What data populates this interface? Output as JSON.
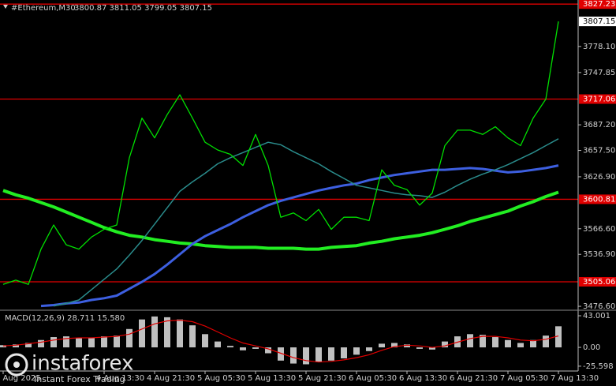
{
  "chart_data": [
    {
      "type": "line",
      "title": "#Ethereum,M30",
      "subtitle": "3800.87 3811.05 3799.05 3807.15",
      "categories": [
        "3 Aug 2025",
        null,
        null,
        null,
        null,
        null,
        null,
        null,
        "4 Aug 13:30",
        null,
        null,
        null,
        "4 Aug 21:30",
        null,
        null,
        null,
        "5 Aug 05:30",
        null,
        null,
        null,
        "5 Aug 13:30",
        null,
        null,
        null,
        "5 Aug 21:30",
        null,
        null,
        null,
        "6 Aug 05:30",
        null,
        null,
        null,
        "6 Aug 13:30",
        null,
        null,
        null,
        "6 Aug 21:30",
        null,
        null,
        null,
        "7 Aug 05:30",
        null,
        null,
        null,
        "7 Aug 13:30"
      ],
      "series": [
        {
          "color": "#22ee22",
          "values": [
            3611,
            3606,
            3602,
            3597,
            3592,
            3586,
            3580,
            3574,
            3568,
            3563,
            3559,
            3557,
            3554,
            3552,
            3550,
            3549,
            3547,
            3546,
            3545,
            3545,
            3545,
            3544,
            3544,
            3544,
            3543,
            3543,
            3545,
            3546,
            3547,
            3550,
            3552,
            3555,
            3557,
            3559,
            3562,
            3566,
            3570,
            3575,
            3579,
            3583,
            3587,
            3593,
            3598,
            3604,
            3609
          ]
        },
        {
          "color": "#3d5fe0",
          "values": [
            null,
            null,
            null,
            3477,
            3478,
            3480,
            3481,
            3484,
            3486,
            3489,
            3497,
            3505,
            3514,
            3525,
            3537,
            3549,
            3558,
            3565,
            3572,
            3580,
            3587,
            3594,
            3599,
            3603,
            3607,
            3611,
            3614,
            3617,
            3619,
            3623,
            3626,
            3629,
            3631,
            3633,
            3635,
            3635,
            3636,
            3637,
            3636,
            3634,
            3632,
            3633,
            3635,
            3637,
            3640
          ]
        },
        {
          "color": "#2a8c8c",
          "values": [
            null,
            null,
            null,
            null,
            3477,
            3480,
            3484,
            3496,
            3508,
            3520,
            3536,
            3553,
            3572,
            3591,
            3610,
            3621,
            3631,
            3642,
            3649,
            3655,
            3661,
            3667,
            3664,
            3656,
            3649,
            3642,
            3633,
            3625,
            3617,
            3614,
            3611,
            3608,
            3606,
            3605,
            3603,
            3609,
            3617,
            3624,
            3630,
            3635,
            3641,
            3648,
            3655,
            3663,
            3671
          ]
        },
        {
          "color": "#00e000",
          "values": [
            3502,
            3507,
            3502,
            3543,
            3571,
            3548,
            3543,
            3557,
            3566,
            3571,
            3649,
            3695,
            3672,
            3699,
            3722,
            3695,
            3667,
            3658,
            3653,
            3640,
            3676,
            3640,
            3580,
            3585,
            3576,
            3589,
            3566,
            3580,
            3580,
            3576,
            3635,
            3617,
            3612,
            3594,
            3608,
            3663,
            3681,
            3681,
            3676,
            3685,
            3672,
            3663,
            3695,
            3717,
            3807.15
          ]
        }
      ],
      "ylim": [
        3473,
        3832
      ],
      "yticks": [
        {
          "value": 3778.1,
          "label": "3778.10"
        },
        {
          "value": 3747.85,
          "label": "3747.85"
        },
        {
          "value": 3687.2,
          "label": "3687.20"
        },
        {
          "value": 3657.5,
          "label": "3657.50"
        },
        {
          "value": 3626.9,
          "label": "3626.90"
        },
        {
          "value": 3566.6,
          "label": "3566.60"
        },
        {
          "value": 3536.9,
          "label": "3536.90"
        },
        {
          "value": 3476.6,
          "label": "3476.60"
        }
      ],
      "levels": [
        3827.23,
        3717.06,
        3600.81,
        3505.06
      ],
      "level_color": "#e00000",
      "last_price": 3807.15,
      "watermark_title": "instaforex",
      "watermark_subtitle": "Instant Forex Trading"
    },
    {
      "type": "bar",
      "title": "MACD(12,26,9) 28.711 15.580",
      "series": [
        {
          "color": "#c0c0c0",
          "values": [
            3,
            4,
            6,
            10,
            14,
            15,
            13,
            13,
            15,
            16,
            25,
            38,
            42,
            41,
            38,
            30,
            18,
            8,
            2,
            -4,
            -2,
            -8,
            -18,
            -22,
            -23,
            -20,
            -18,
            -15,
            -10,
            -5,
            5,
            6,
            4,
            -2,
            -3,
            8,
            15,
            18,
            17,
            14,
            10,
            6,
            10,
            16,
            28.711
          ]
        },
        {
          "color": "#e00000",
          "values": [
            2,
            3,
            5,
            7,
            10,
            12,
            13,
            13,
            14,
            15,
            18,
            25,
            32,
            36,
            37,
            35,
            29,
            21,
            13,
            6,
            2,
            -2,
            -8,
            -14,
            -18,
            -20,
            -19,
            -17,
            -14,
            -10,
            -4,
            1,
            3,
            2,
            0,
            2,
            7,
            12,
            15,
            15,
            13,
            10,
            9,
            11,
            15.58
          ]
        }
      ],
      "ylim": [
        -30,
        48.4
      ],
      "yticks": [
        {
          "value": 43.001,
          "label": "43.001"
        },
        {
          "value": 0,
          "label": "0.00"
        },
        {
          "value": -25.598,
          "label": "-25.598"
        }
      ]
    }
  ]
}
